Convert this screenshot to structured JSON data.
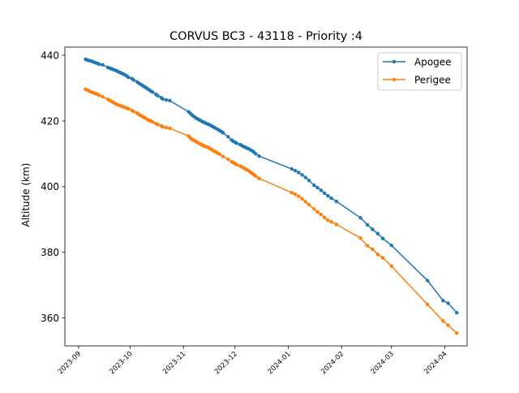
{
  "chart_data": {
    "type": "line",
    "title": "CORVUS BC3 - 43118 - Priority :4",
    "xlabel": "",
    "ylabel": "Altitude (km)",
    "xlim": [
      "2023-08-24",
      "2024-04-14"
    ],
    "ylim": [
      351.5,
      442.5
    ],
    "x_ticks": [
      "2023-09",
      "2023-10",
      "2023-11",
      "2023-12",
      "2024-01",
      "2024-02",
      "2024-03",
      "2024-04"
    ],
    "y_ticks": [
      360,
      380,
      400,
      420,
      440
    ],
    "legend_position": "top-right",
    "grid": false,
    "series": [
      {
        "name": "Apogee",
        "color": "#1f77b4",
        "points": [
          [
            "2023-09-05",
            438.8
          ],
          [
            "2023-09-06",
            438.6
          ],
          [
            "2023-09-07",
            438.4
          ],
          [
            "2023-09-08",
            438.3
          ],
          [
            "2023-09-09",
            438.1
          ],
          [
            "2023-09-10",
            437.9
          ],
          [
            "2023-09-11",
            437.7
          ],
          [
            "2023-09-12",
            437.5
          ],
          [
            "2023-09-13",
            437.3
          ],
          [
            "2023-09-15",
            437.1
          ],
          [
            "2023-09-18",
            436.3
          ],
          [
            "2023-09-19",
            436.1
          ],
          [
            "2023-09-20",
            435.9
          ],
          [
            "2023-09-21",
            435.7
          ],
          [
            "2023-09-22",
            435.5
          ],
          [
            "2023-09-23",
            435.3
          ],
          [
            "2023-09-24",
            435.0
          ],
          [
            "2023-09-25",
            434.8
          ],
          [
            "2023-09-26",
            434.5
          ],
          [
            "2023-09-27",
            434.3
          ],
          [
            "2023-09-28",
            434.0
          ],
          [
            "2023-09-29",
            433.7
          ],
          [
            "2023-09-30",
            433.3
          ],
          [
            "2023-10-02",
            432.9
          ],
          [
            "2023-10-03",
            432.5
          ],
          [
            "2023-10-05",
            431.9
          ],
          [
            "2023-10-06",
            431.5
          ],
          [
            "2023-10-07",
            431.2
          ],
          [
            "2023-10-08",
            430.9
          ],
          [
            "2023-10-09",
            430.5
          ],
          [
            "2023-10-10",
            430.2
          ],
          [
            "2023-10-11",
            429.8
          ],
          [
            "2023-10-12",
            429.5
          ],
          [
            "2023-10-13",
            429.1
          ],
          [
            "2023-10-14",
            428.8
          ],
          [
            "2023-10-16",
            428.1
          ],
          [
            "2023-10-17",
            427.7
          ],
          [
            "2023-10-19",
            427.1
          ],
          [
            "2023-10-20",
            426.7
          ],
          [
            "2023-10-22",
            426.4
          ],
          [
            "2023-10-24",
            426.2
          ],
          [
            "2023-11-04",
            422.8
          ],
          [
            "2023-11-05",
            422.3
          ],
          [
            "2023-11-06",
            421.8
          ],
          [
            "2023-11-07",
            421.4
          ],
          [
            "2023-11-08",
            421.0
          ],
          [
            "2023-11-09",
            420.7
          ],
          [
            "2023-11-10",
            420.4
          ],
          [
            "2023-11-11",
            420.1
          ],
          [
            "2023-11-12",
            419.8
          ],
          [
            "2023-11-13",
            419.6
          ],
          [
            "2023-11-14",
            419.3
          ],
          [
            "2023-11-15",
            419.1
          ],
          [
            "2023-11-16",
            418.9
          ],
          [
            "2023-11-17",
            418.6
          ],
          [
            "2023-11-18",
            418.3
          ],
          [
            "2023-11-19",
            418.0
          ],
          [
            "2023-11-20",
            417.7
          ],
          [
            "2023-11-21",
            417.4
          ],
          [
            "2023-11-22",
            417.1
          ],
          [
            "2023-11-23",
            416.8
          ],
          [
            "2023-11-24",
            416.4
          ],
          [
            "2023-11-27",
            415.2
          ],
          [
            "2023-11-29",
            414.2
          ],
          [
            "2023-11-30",
            413.8
          ],
          [
            "2023-12-01",
            413.5
          ],
          [
            "2023-12-02",
            413.2
          ],
          [
            "2023-12-04",
            412.8
          ],
          [
            "2023-12-05",
            412.5
          ],
          [
            "2023-12-06",
            412.2
          ],
          [
            "2023-12-07",
            412.0
          ],
          [
            "2023-12-08",
            411.7
          ],
          [
            "2023-12-09",
            411.5
          ],
          [
            "2023-12-10",
            411.2
          ],
          [
            "2023-12-11",
            410.9
          ],
          [
            "2023-12-12",
            410.5
          ],
          [
            "2023-12-13",
            410.0
          ],
          [
            "2023-12-15",
            409.3
          ],
          [
            "2024-01-03",
            405.4
          ],
          [
            "2024-01-05",
            404.9
          ],
          [
            "2024-01-07",
            404.3
          ],
          [
            "2024-01-09",
            403.6
          ],
          [
            "2024-01-11",
            402.8
          ],
          [
            "2024-01-13",
            401.9
          ],
          [
            "2024-01-16",
            400.4
          ],
          [
            "2024-01-18",
            399.7
          ],
          [
            "2024-01-20",
            398.9
          ],
          [
            "2024-01-22",
            398.0
          ],
          [
            "2024-01-24",
            397.2
          ],
          [
            "2024-01-26",
            396.5
          ],
          [
            "2024-01-29",
            395.5
          ],
          [
            "2024-02-12",
            390.5
          ],
          [
            "2024-02-16",
            388.4
          ],
          [
            "2024-02-19",
            387.0
          ],
          [
            "2024-02-22",
            385.7
          ],
          [
            "2024-02-25",
            384.2
          ],
          [
            "2024-03-01",
            382.1
          ],
          [
            "2024-03-22",
            371.4
          ],
          [
            "2024-03-31",
            365.3
          ],
          [
            "2024-04-03",
            364.5
          ],
          [
            "2024-04-08",
            361.6
          ]
        ]
      },
      {
        "name": "Perigee",
        "color": "#ff7f0e",
        "points": [
          [
            "2023-09-05",
            429.7
          ],
          [
            "2023-09-06",
            429.4
          ],
          [
            "2023-09-07",
            429.2
          ],
          [
            "2023-09-08",
            428.9
          ],
          [
            "2023-09-09",
            428.7
          ],
          [
            "2023-09-10",
            428.5
          ],
          [
            "2023-09-11",
            428.3
          ],
          [
            "2023-09-12",
            428.1
          ],
          [
            "2023-09-13",
            427.8
          ],
          [
            "2023-09-15",
            427.4
          ],
          [
            "2023-09-18",
            426.6
          ],
          [
            "2023-09-19",
            426.3
          ],
          [
            "2023-09-20",
            426.0
          ],
          [
            "2023-09-21",
            425.7
          ],
          [
            "2023-09-22",
            425.4
          ],
          [
            "2023-09-23",
            425.1
          ],
          [
            "2023-09-24",
            424.9
          ],
          [
            "2023-09-25",
            424.7
          ],
          [
            "2023-09-26",
            424.5
          ],
          [
            "2023-09-27",
            424.3
          ],
          [
            "2023-09-28",
            424.1
          ],
          [
            "2023-09-29",
            423.9
          ],
          [
            "2023-09-30",
            423.7
          ],
          [
            "2023-10-02",
            423.2
          ],
          [
            "2023-10-03",
            422.9
          ],
          [
            "2023-10-05",
            422.4
          ],
          [
            "2023-10-06",
            422.0
          ],
          [
            "2023-10-07",
            421.7
          ],
          [
            "2023-10-08",
            421.4
          ],
          [
            "2023-10-09",
            421.1
          ],
          [
            "2023-10-10",
            420.8
          ],
          [
            "2023-10-11",
            420.5
          ],
          [
            "2023-10-12",
            420.2
          ],
          [
            "2023-10-13",
            420.0
          ],
          [
            "2023-10-14",
            419.7
          ],
          [
            "2023-10-16",
            419.2
          ],
          [
            "2023-10-17",
            418.9
          ],
          [
            "2023-10-19",
            418.5
          ],
          [
            "2023-10-20",
            418.2
          ],
          [
            "2023-10-22",
            418.0
          ],
          [
            "2023-10-24",
            417.8
          ],
          [
            "2023-11-04",
            415.4
          ],
          [
            "2023-11-05",
            414.8
          ],
          [
            "2023-11-06",
            414.4
          ],
          [
            "2023-11-07",
            414.1
          ],
          [
            "2023-11-08",
            413.8
          ],
          [
            "2023-11-09",
            413.5
          ],
          [
            "2023-11-10",
            413.2
          ],
          [
            "2023-11-11",
            412.9
          ],
          [
            "2023-11-12",
            412.7
          ],
          [
            "2023-11-13",
            412.4
          ],
          [
            "2023-11-14",
            412.2
          ],
          [
            "2023-11-15",
            412.0
          ],
          [
            "2023-11-16",
            411.7
          ],
          [
            "2023-11-17",
            411.4
          ],
          [
            "2023-11-18",
            411.1
          ],
          [
            "2023-11-19",
            410.8
          ],
          [
            "2023-11-20",
            410.5
          ],
          [
            "2023-11-21",
            410.2
          ],
          [
            "2023-11-22",
            409.9
          ],
          [
            "2023-11-24",
            409.2
          ],
          [
            "2023-11-27",
            408.3
          ],
          [
            "2023-11-29",
            407.6
          ],
          [
            "2023-11-30",
            407.3
          ],
          [
            "2023-12-01",
            407.0
          ],
          [
            "2023-12-02",
            406.7
          ],
          [
            "2023-12-04",
            406.3
          ],
          [
            "2023-12-05",
            406.0
          ],
          [
            "2023-12-06",
            405.7
          ],
          [
            "2023-12-07",
            405.4
          ],
          [
            "2023-12-08",
            405.1
          ],
          [
            "2023-12-09",
            404.8
          ],
          [
            "2023-12-10",
            404.4
          ],
          [
            "2023-12-11",
            404.0
          ],
          [
            "2023-12-12",
            403.6
          ],
          [
            "2023-12-13",
            403.2
          ],
          [
            "2023-12-15",
            402.5
          ],
          [
            "2024-01-03",
            398.2
          ],
          [
            "2024-01-05",
            397.7
          ],
          [
            "2024-01-07",
            397.1
          ],
          [
            "2024-01-09",
            396.3
          ],
          [
            "2024-01-11",
            395.4
          ],
          [
            "2024-01-13",
            394.5
          ],
          [
            "2024-01-16",
            393.2
          ],
          [
            "2024-01-18",
            392.3
          ],
          [
            "2024-01-20",
            391.5
          ],
          [
            "2024-01-22",
            390.6
          ],
          [
            "2024-01-24",
            389.8
          ],
          [
            "2024-01-26",
            389.3
          ],
          [
            "2024-01-29",
            388.5
          ],
          [
            "2024-02-12",
            384.3
          ],
          [
            "2024-02-16",
            382.0
          ],
          [
            "2024-02-19",
            380.9
          ],
          [
            "2024-02-22",
            379.4
          ],
          [
            "2024-02-25",
            378.3
          ],
          [
            "2024-03-01",
            375.8
          ],
          [
            "2024-03-22",
            364.1
          ],
          [
            "2024-03-31",
            359.1
          ],
          [
            "2024-04-03",
            357.8
          ],
          [
            "2024-04-08",
            355.4
          ]
        ]
      }
    ]
  }
}
